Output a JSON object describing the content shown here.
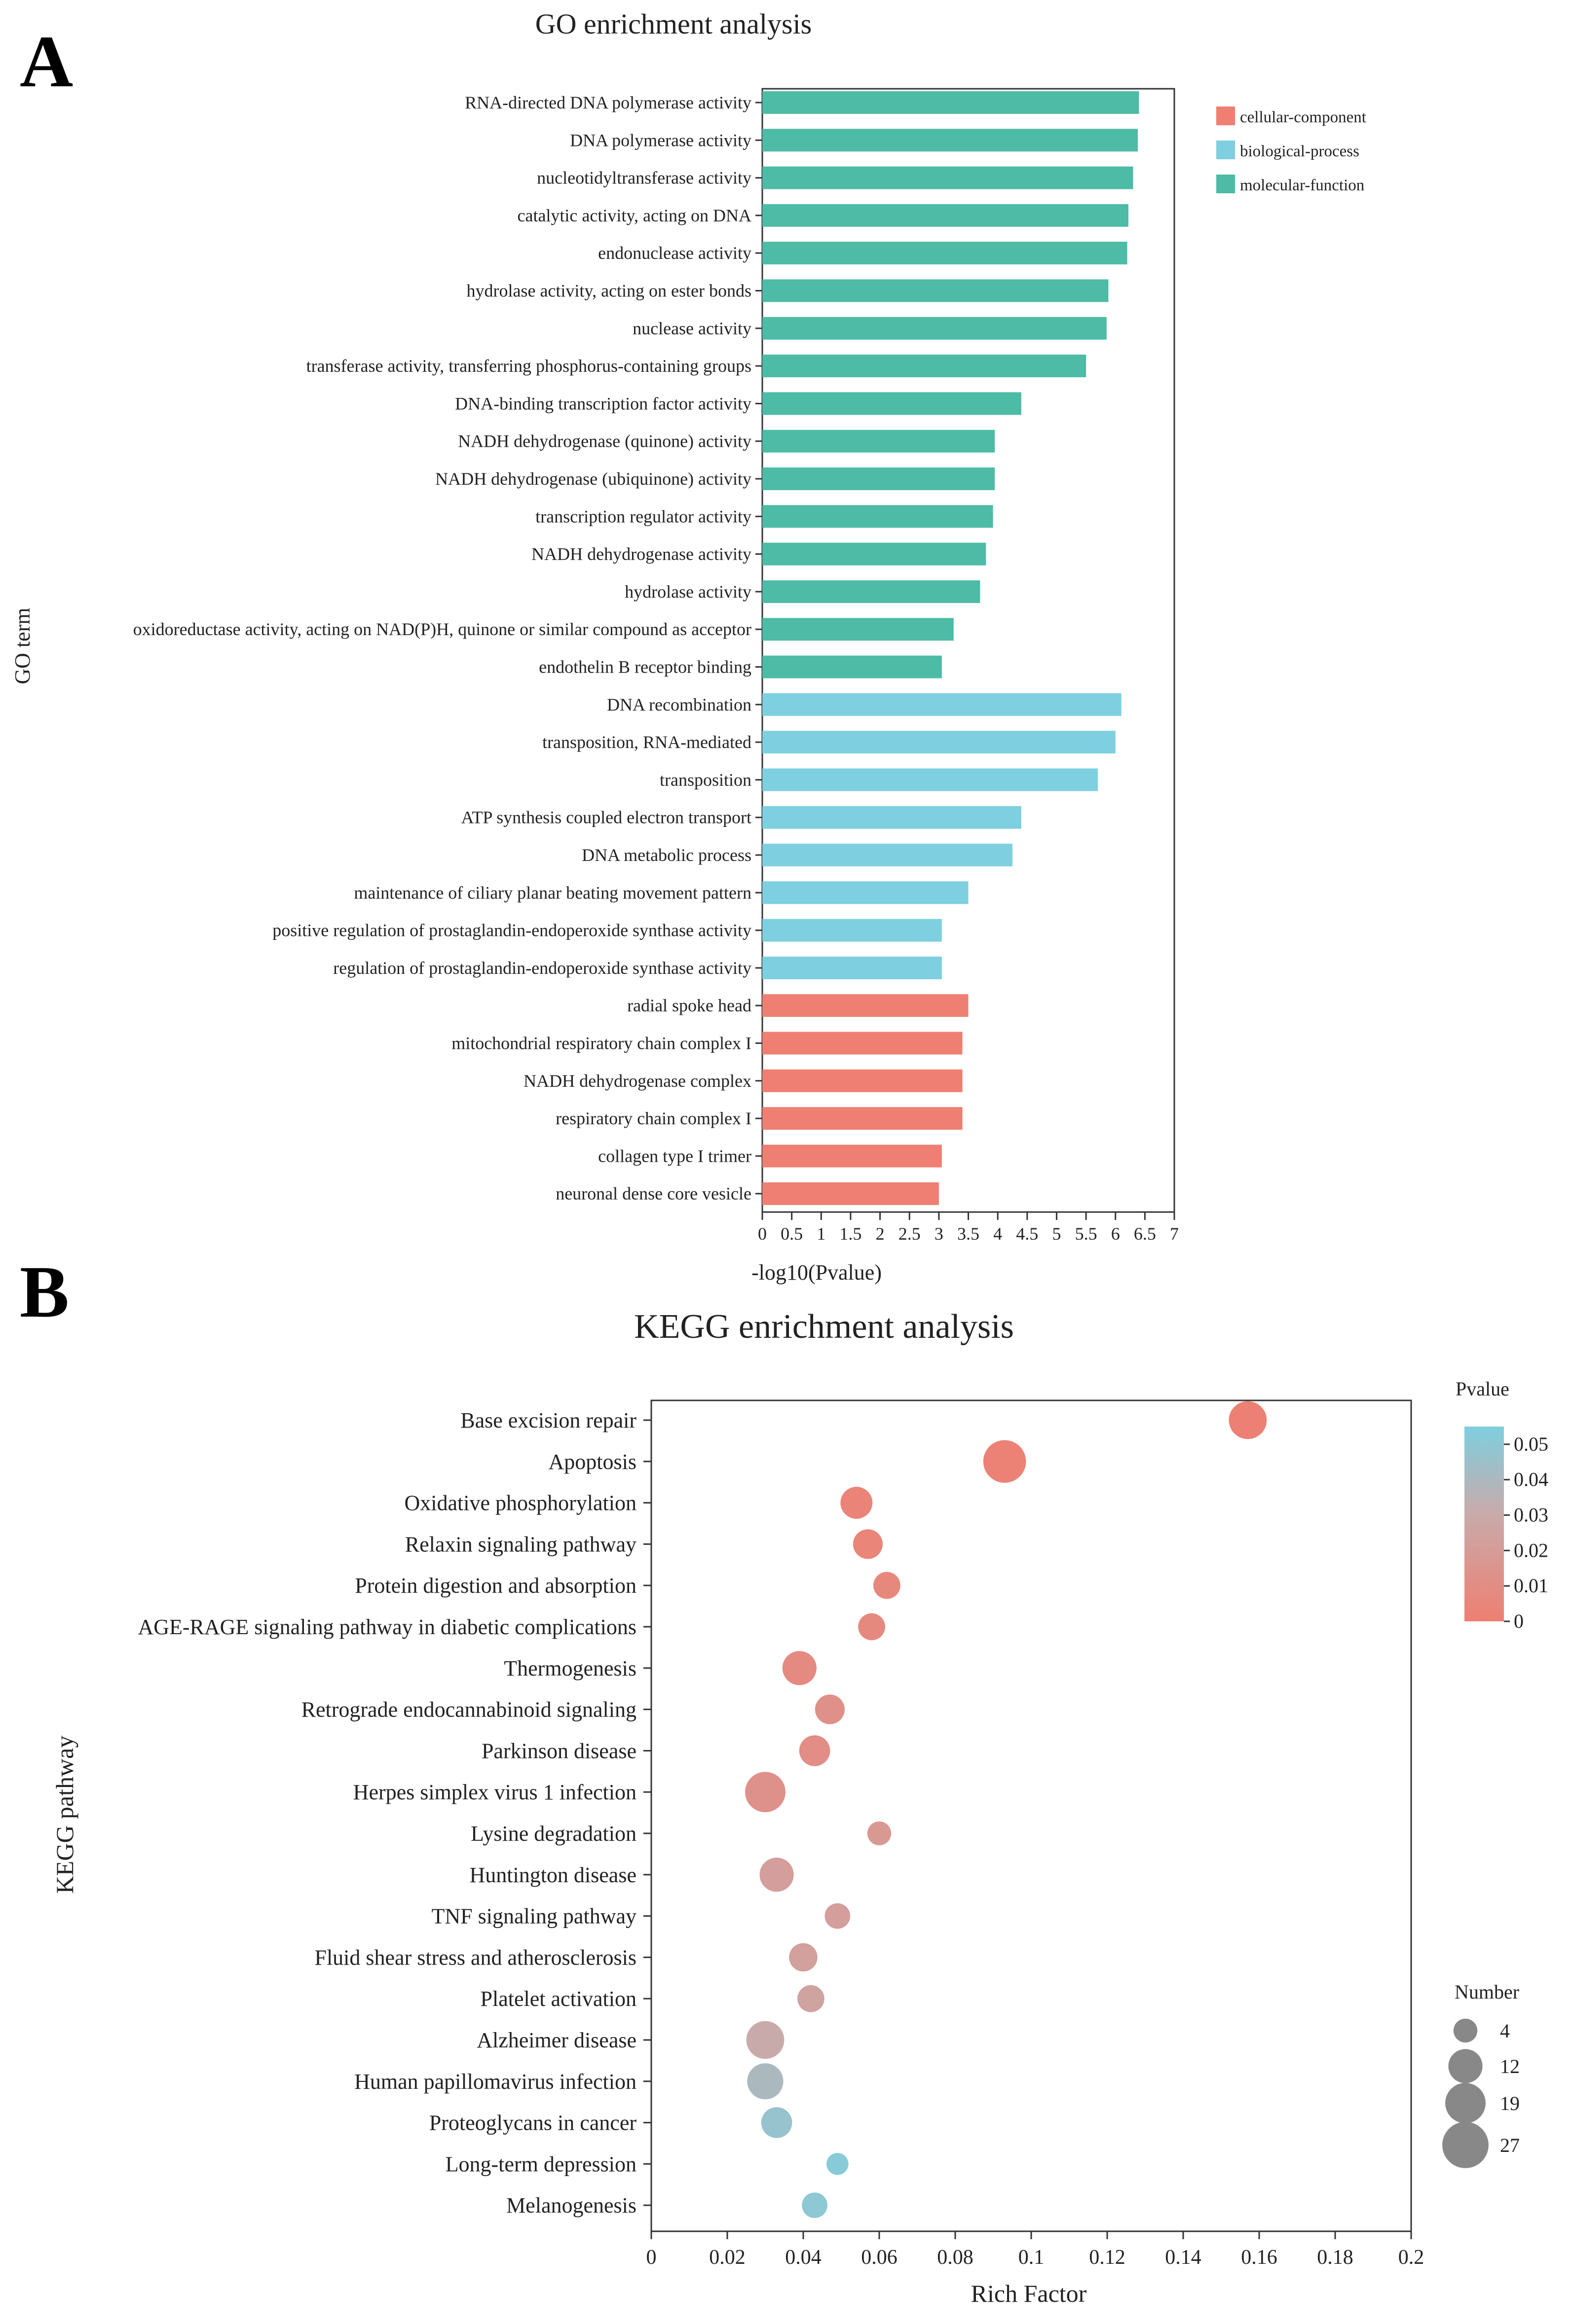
{
  "panel_labels": [
    "A",
    "B"
  ],
  "chart_data": [
    {
      "type": "bar",
      "orientation": "horizontal",
      "title": "GO enrichment analysis",
      "xlabel": "-log10(Pvalue)",
      "ylabel": "GO term",
      "xlim": [
        0,
        7
      ],
      "xticks": [
        "0",
        "0.5",
        "1",
        "1.5",
        "2",
        "2.5",
        "3",
        "3.5",
        "4",
        "4.5",
        "5",
        "5.5",
        "6",
        "6.5",
        "7"
      ],
      "legend": [
        {
          "name": "cellular-component",
          "color": "#ee7f72"
        },
        {
          "name": "biological-process",
          "color": "#7ecfdf"
        },
        {
          "name": "molecular-function",
          "color": "#4dbba6"
        }
      ],
      "bars": [
        {
          "term": "RNA-directed DNA polymerase activity",
          "value": 6.4,
          "category": "molecular-function"
        },
        {
          "term": "DNA polymerase activity",
          "value": 6.38,
          "category": "molecular-function"
        },
        {
          "term": "nucleotidyltransferase activity",
          "value": 6.3,
          "category": "molecular-function"
        },
        {
          "term": "catalytic activity, acting on DNA",
          "value": 6.22,
          "category": "molecular-function"
        },
        {
          "term": "endonuclease activity",
          "value": 6.2,
          "category": "molecular-function"
        },
        {
          "term": "hydrolase activity, acting on ester bonds",
          "value": 5.88,
          "category": "molecular-function"
        },
        {
          "term": "nuclease activity",
          "value": 5.85,
          "category": "molecular-function"
        },
        {
          "term": "transferase activity, transferring phosphorus-containing groups",
          "value": 5.5,
          "category": "molecular-function"
        },
        {
          "term": "DNA-binding transcription factor activity",
          "value": 4.4,
          "category": "molecular-function"
        },
        {
          "term": "NADH dehydrogenase (quinone) activity",
          "value": 3.95,
          "category": "molecular-function"
        },
        {
          "term": "NADH dehydrogenase (ubiquinone) activity",
          "value": 3.95,
          "category": "molecular-function"
        },
        {
          "term": "transcription regulator activity",
          "value": 3.92,
          "category": "molecular-function"
        },
        {
          "term": "NADH dehydrogenase activity",
          "value": 3.8,
          "category": "molecular-function"
        },
        {
          "term": "hydrolase activity",
          "value": 3.7,
          "category": "molecular-function"
        },
        {
          "term": "oxidoreductase activity, acting on NAD(P)H, quinone or similar compound as acceptor",
          "value": 3.25,
          "category": "molecular-function"
        },
        {
          "term": "endothelin B receptor binding",
          "value": 3.05,
          "category": "molecular-function"
        },
        {
          "term": "DNA recombination",
          "value": 6.1,
          "category": "biological-process"
        },
        {
          "term": "transposition, RNA-mediated",
          "value": 6.0,
          "category": "biological-process"
        },
        {
          "term": "transposition",
          "value": 5.7,
          "category": "biological-process"
        },
        {
          "term": "ATP synthesis coupled electron transport",
          "value": 4.4,
          "category": "biological-process"
        },
        {
          "term": "DNA metabolic process",
          "value": 4.25,
          "category": "biological-process"
        },
        {
          "term": "maintenance of ciliary planar beating movement pattern",
          "value": 3.5,
          "category": "biological-process"
        },
        {
          "term": "positive regulation of prostaglandin-endoperoxide synthase activity",
          "value": 3.05,
          "category": "biological-process"
        },
        {
          "term": "regulation of prostaglandin-endoperoxide synthase activity",
          "value": 3.05,
          "category": "biological-process"
        },
        {
          "term": "radial spoke head",
          "value": 3.5,
          "category": "cellular-component"
        },
        {
          "term": "mitochondrial respiratory chain complex I",
          "value": 3.4,
          "category": "cellular-component"
        },
        {
          "term": "NADH dehydrogenase complex",
          "value": 3.4,
          "category": "cellular-component"
        },
        {
          "term": "respiratory chain complex I",
          "value": 3.4,
          "category": "cellular-component"
        },
        {
          "term": "collagen type I trimer",
          "value": 3.05,
          "category": "cellular-component"
        },
        {
          "term": "neuronal dense core vesicle",
          "value": 3.0,
          "category": "cellular-component"
        }
      ]
    },
    {
      "type": "scatter",
      "title": "KEGG enrichment analysis",
      "xlabel": "Rich Factor",
      "ylabel": "KEGG pathway",
      "xlim": [
        0,
        0.2
      ],
      "xticks": [
        "0",
        "0.02",
        "0.04",
        "0.06",
        "0.08",
        "0.1",
        "0.12",
        "0.14",
        "0.16",
        "0.18",
        "0.2"
      ],
      "color_legend": {
        "title": "Pvalue",
        "ticks": [
          "0.05",
          "0.04",
          "0.03",
          "0.02",
          "0.01",
          "0"
        ],
        "range": [
          0,
          0.055
        ],
        "low_color": "#ee7f72",
        "high_color": "#7ecfdf"
      },
      "size_legend": {
        "title": "Number",
        "values": [
          4,
          12,
          19,
          27
        ]
      },
      "points": [
        {
          "pathway": "Base excision repair",
          "rich_factor": 0.157,
          "number": 16,
          "pvalue": 0.001
        },
        {
          "pathway": "Apoptosis",
          "rich_factor": 0.093,
          "number": 22,
          "pvalue": 0.002
        },
        {
          "pathway": "Oxidative phosphorylation",
          "rich_factor": 0.054,
          "number": 10,
          "pvalue": 0.003
        },
        {
          "pathway": "Relaxin signaling pathway",
          "rich_factor": 0.057,
          "number": 8,
          "pvalue": 0.004
        },
        {
          "pathway": "Protein digestion and absorption",
          "rich_factor": 0.062,
          "number": 6,
          "pvalue": 0.006
        },
        {
          "pathway": "AGE-RAGE signaling pathway in diabetic complications",
          "rich_factor": 0.058,
          "number": 6,
          "pvalue": 0.007
        },
        {
          "pathway": "Thermogenesis",
          "rich_factor": 0.039,
          "number": 12,
          "pvalue": 0.008
        },
        {
          "pathway": "Retrograde endocannabinoid signaling",
          "rich_factor": 0.047,
          "number": 8,
          "pvalue": 0.012
        },
        {
          "pathway": "Parkinson disease",
          "rich_factor": 0.043,
          "number": 9,
          "pvalue": 0.01
        },
        {
          "pathway": "Herpes simplex virus 1 infection",
          "rich_factor": 0.03,
          "number": 19,
          "pvalue": 0.013
        },
        {
          "pathway": "Lysine degradation",
          "rich_factor": 0.06,
          "number": 4,
          "pvalue": 0.018
        },
        {
          "pathway": "Huntington disease",
          "rich_factor": 0.033,
          "number": 12,
          "pvalue": 0.022
        },
        {
          "pathway": "TNF signaling pathway",
          "rich_factor": 0.049,
          "number": 5,
          "pvalue": 0.022
        },
        {
          "pathway": "Fluid shear stress and atherosclerosis",
          "rich_factor": 0.04,
          "number": 7,
          "pvalue": 0.023
        },
        {
          "pathway": "Platelet activation",
          "rich_factor": 0.042,
          "number": 6,
          "pvalue": 0.025
        },
        {
          "pathway": "Alzheimer disease",
          "rich_factor": 0.03,
          "number": 16,
          "pvalue": 0.03
        },
        {
          "pathway": "Human papillomavirus infection",
          "rich_factor": 0.03,
          "number": 14,
          "pvalue": 0.04
        },
        {
          "pathway": "Proteoglycans in cancer",
          "rich_factor": 0.033,
          "number": 9,
          "pvalue": 0.047
        },
        {
          "pathway": "Long-term depression",
          "rich_factor": 0.049,
          "number": 3,
          "pvalue": 0.052
        },
        {
          "pathway": "Melanogenesis",
          "rich_factor": 0.043,
          "number": 5,
          "pvalue": 0.05
        }
      ]
    }
  ]
}
